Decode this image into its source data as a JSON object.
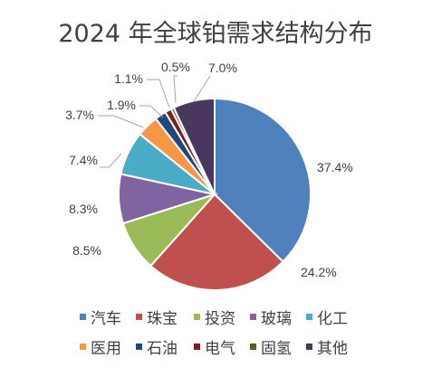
{
  "chart_data": {
    "type": "pie",
    "title": "2024 年全球铂需求结构分布",
    "categories": [
      "汽车",
      "珠宝",
      "投资",
      "玻璃",
      "化工",
      "医用",
      "石油",
      "电气",
      "固氢",
      "其他"
    ],
    "values": [
      37.4,
      24.2,
      8.5,
      8.3,
      7.4,
      3.7,
      1.9,
      1.1,
      0.5,
      7.0
    ],
    "value_labels": [
      "37.4%",
      "24.2%",
      "8.5%",
      "8.3%",
      "7.4%",
      "3.7%",
      "1.9%",
      "1.1%",
      "0.5%",
      "7.0%"
    ],
    "colors": [
      "#4f81bd",
      "#c0504d",
      "#9bbb59",
      "#8064a2",
      "#4bacc6",
      "#f79646",
      "#1f497d",
      "#7b2020",
      "#4f6228",
      "#4a3760"
    ],
    "start": "12 o'clock",
    "direction": "clockwise",
    "legend_position": "bottom"
  }
}
